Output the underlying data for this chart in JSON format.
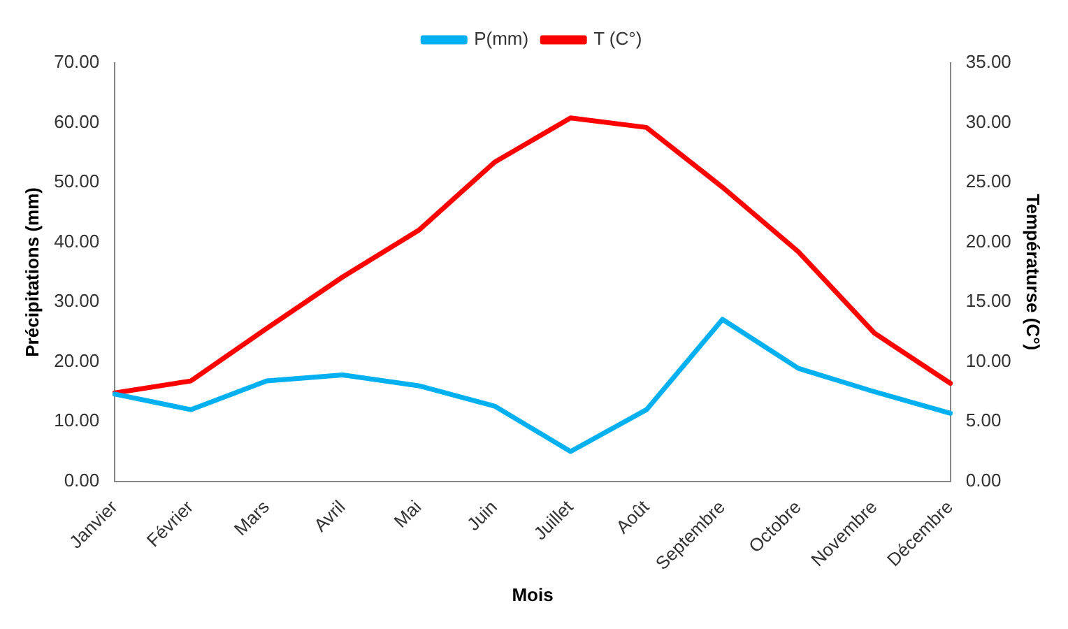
{
  "chart_data": {
    "type": "line",
    "xlabel": "Mois",
    "ylabel": "Précipitations (mm)",
    "y2label": "Températurse (C°)",
    "categories": [
      "Janvier",
      "Février",
      "Mars",
      "Avril",
      "Mai",
      "Juin",
      "Juillet",
      "Août",
      "Septembre",
      "Octobre",
      "Novembre",
      "Décembre"
    ],
    "series": [
      {
        "name": "P(mm)",
        "color": "#00b0f0",
        "values": [
          14.6,
          12.0,
          16.8,
          17.8,
          16.0,
          12.6,
          5.0,
          12.0,
          27.1,
          18.9,
          15.0,
          11.4
        ]
      },
      {
        "name": "T (C°)",
        "color": "#ff0000",
        "axis": "y2",
        "values": [
          7.4,
          8.4,
          12.8,
          17.1,
          21.0,
          26.7,
          30.4,
          29.6,
          24.6,
          19.2,
          12.4,
          8.2
        ]
      }
    ],
    "ylim": [
      0,
      70
    ],
    "yticks": [
      {
        "value": 0,
        "label": "0.00"
      },
      {
        "value": 10,
        "label": "10.00"
      },
      {
        "value": 20,
        "label": "20.00"
      },
      {
        "value": 30,
        "label": "30.00"
      },
      {
        "value": 40,
        "label": "40.00"
      },
      {
        "value": 50,
        "label": "50.00"
      },
      {
        "value": 60,
        "label": "60.00"
      },
      {
        "value": 70,
        "label": "70.00"
      }
    ],
    "y2lim": [
      0,
      35
    ],
    "y2ticks": [
      {
        "value": 0,
        "label": "0.00"
      },
      {
        "value": 5,
        "label": "5.00"
      },
      {
        "value": 10,
        "label": "10.00"
      },
      {
        "value": 15,
        "label": "15.00"
      },
      {
        "value": 20,
        "label": "20.00"
      },
      {
        "value": 25,
        "label": "25.00"
      },
      {
        "value": 30,
        "label": "30.00"
      },
      {
        "value": 35,
        "label": "35.00"
      }
    ],
    "grid": false,
    "legend": "top",
    "marker": "none",
    "line_style": "solid"
  }
}
